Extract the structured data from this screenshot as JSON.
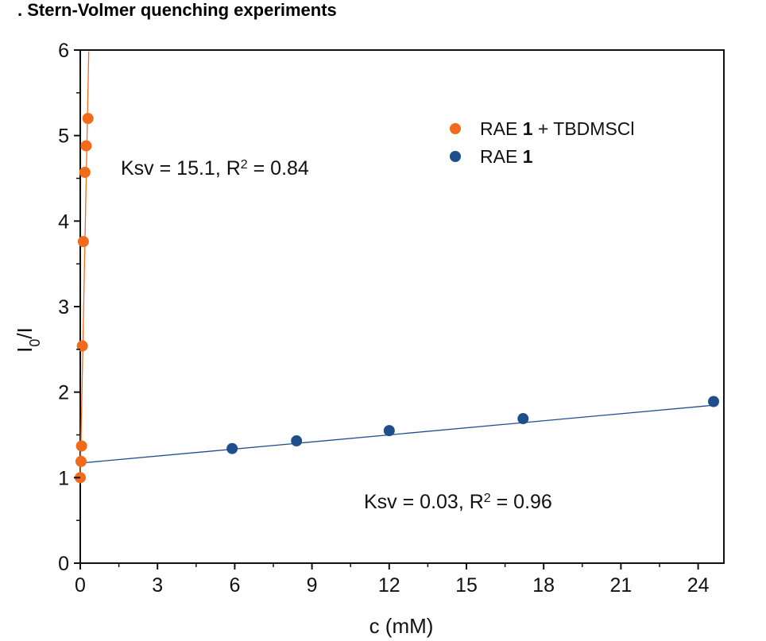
{
  "chart_data": {
    "type": "scatter",
    "title": ". Stern-Volmer quenching experiments",
    "xlabel": "c (mM)",
    "ylabel_main": "I",
    "ylabel_sub": "0",
    "ylabel_tail": "/I",
    "xlim": [
      0,
      25
    ],
    "ylim": [
      0,
      6
    ],
    "xticks": [
      0,
      3,
      6,
      9,
      12,
      15,
      18,
      21,
      24
    ],
    "yticks": [
      0,
      1,
      2,
      3,
      4,
      5,
      6
    ],
    "grid": false,
    "legend_position": "top-right",
    "series": [
      {
        "name": "RAE 1 + TBDMSCl",
        "legend_prefix": "RAE ",
        "legend_bold": "1",
        "legend_suffix": " + TBDMSCl",
        "color": "#f26b1d",
        "points": [
          {
            "x": 0.0,
            "y": 1.0
          },
          {
            "x": 0.03,
            "y": 1.19
          },
          {
            "x": 0.05,
            "y": 1.37
          },
          {
            "x": 0.08,
            "y": 2.54
          },
          {
            "x": 0.12,
            "y": 3.76
          },
          {
            "x": 0.18,
            "y": 4.57
          },
          {
            "x": 0.23,
            "y": 4.88
          },
          {
            "x": 0.3,
            "y": 5.2
          }
        ],
        "fit": {
          "slope": 15.1,
          "intercept": 1.0,
          "x_from": 0.0,
          "x_to": 0.33
        },
        "annotation": {
          "prefix": "Ksv = 15.1, R",
          "sup": "2",
          "suffix": " = 0.84"
        }
      },
      {
        "name": "RAE 1",
        "legend_prefix": "RAE ",
        "legend_bold": "1",
        "legend_suffix": "",
        "color": "#1f4e8c",
        "points": [
          {
            "x": 5.9,
            "y": 1.34
          },
          {
            "x": 8.4,
            "y": 1.43
          },
          {
            "x": 12.0,
            "y": 1.55
          },
          {
            "x": 17.2,
            "y": 1.69
          },
          {
            "x": 24.6,
            "y": 1.89
          }
        ],
        "fit": {
          "slope": 0.0275,
          "intercept": 1.17,
          "x_from": 0.0,
          "x_to": 24.6
        },
        "annotation": {
          "prefix": "Ksv = 0.03, R",
          "sup": "2",
          "suffix": " = 0.96"
        }
      }
    ]
  }
}
